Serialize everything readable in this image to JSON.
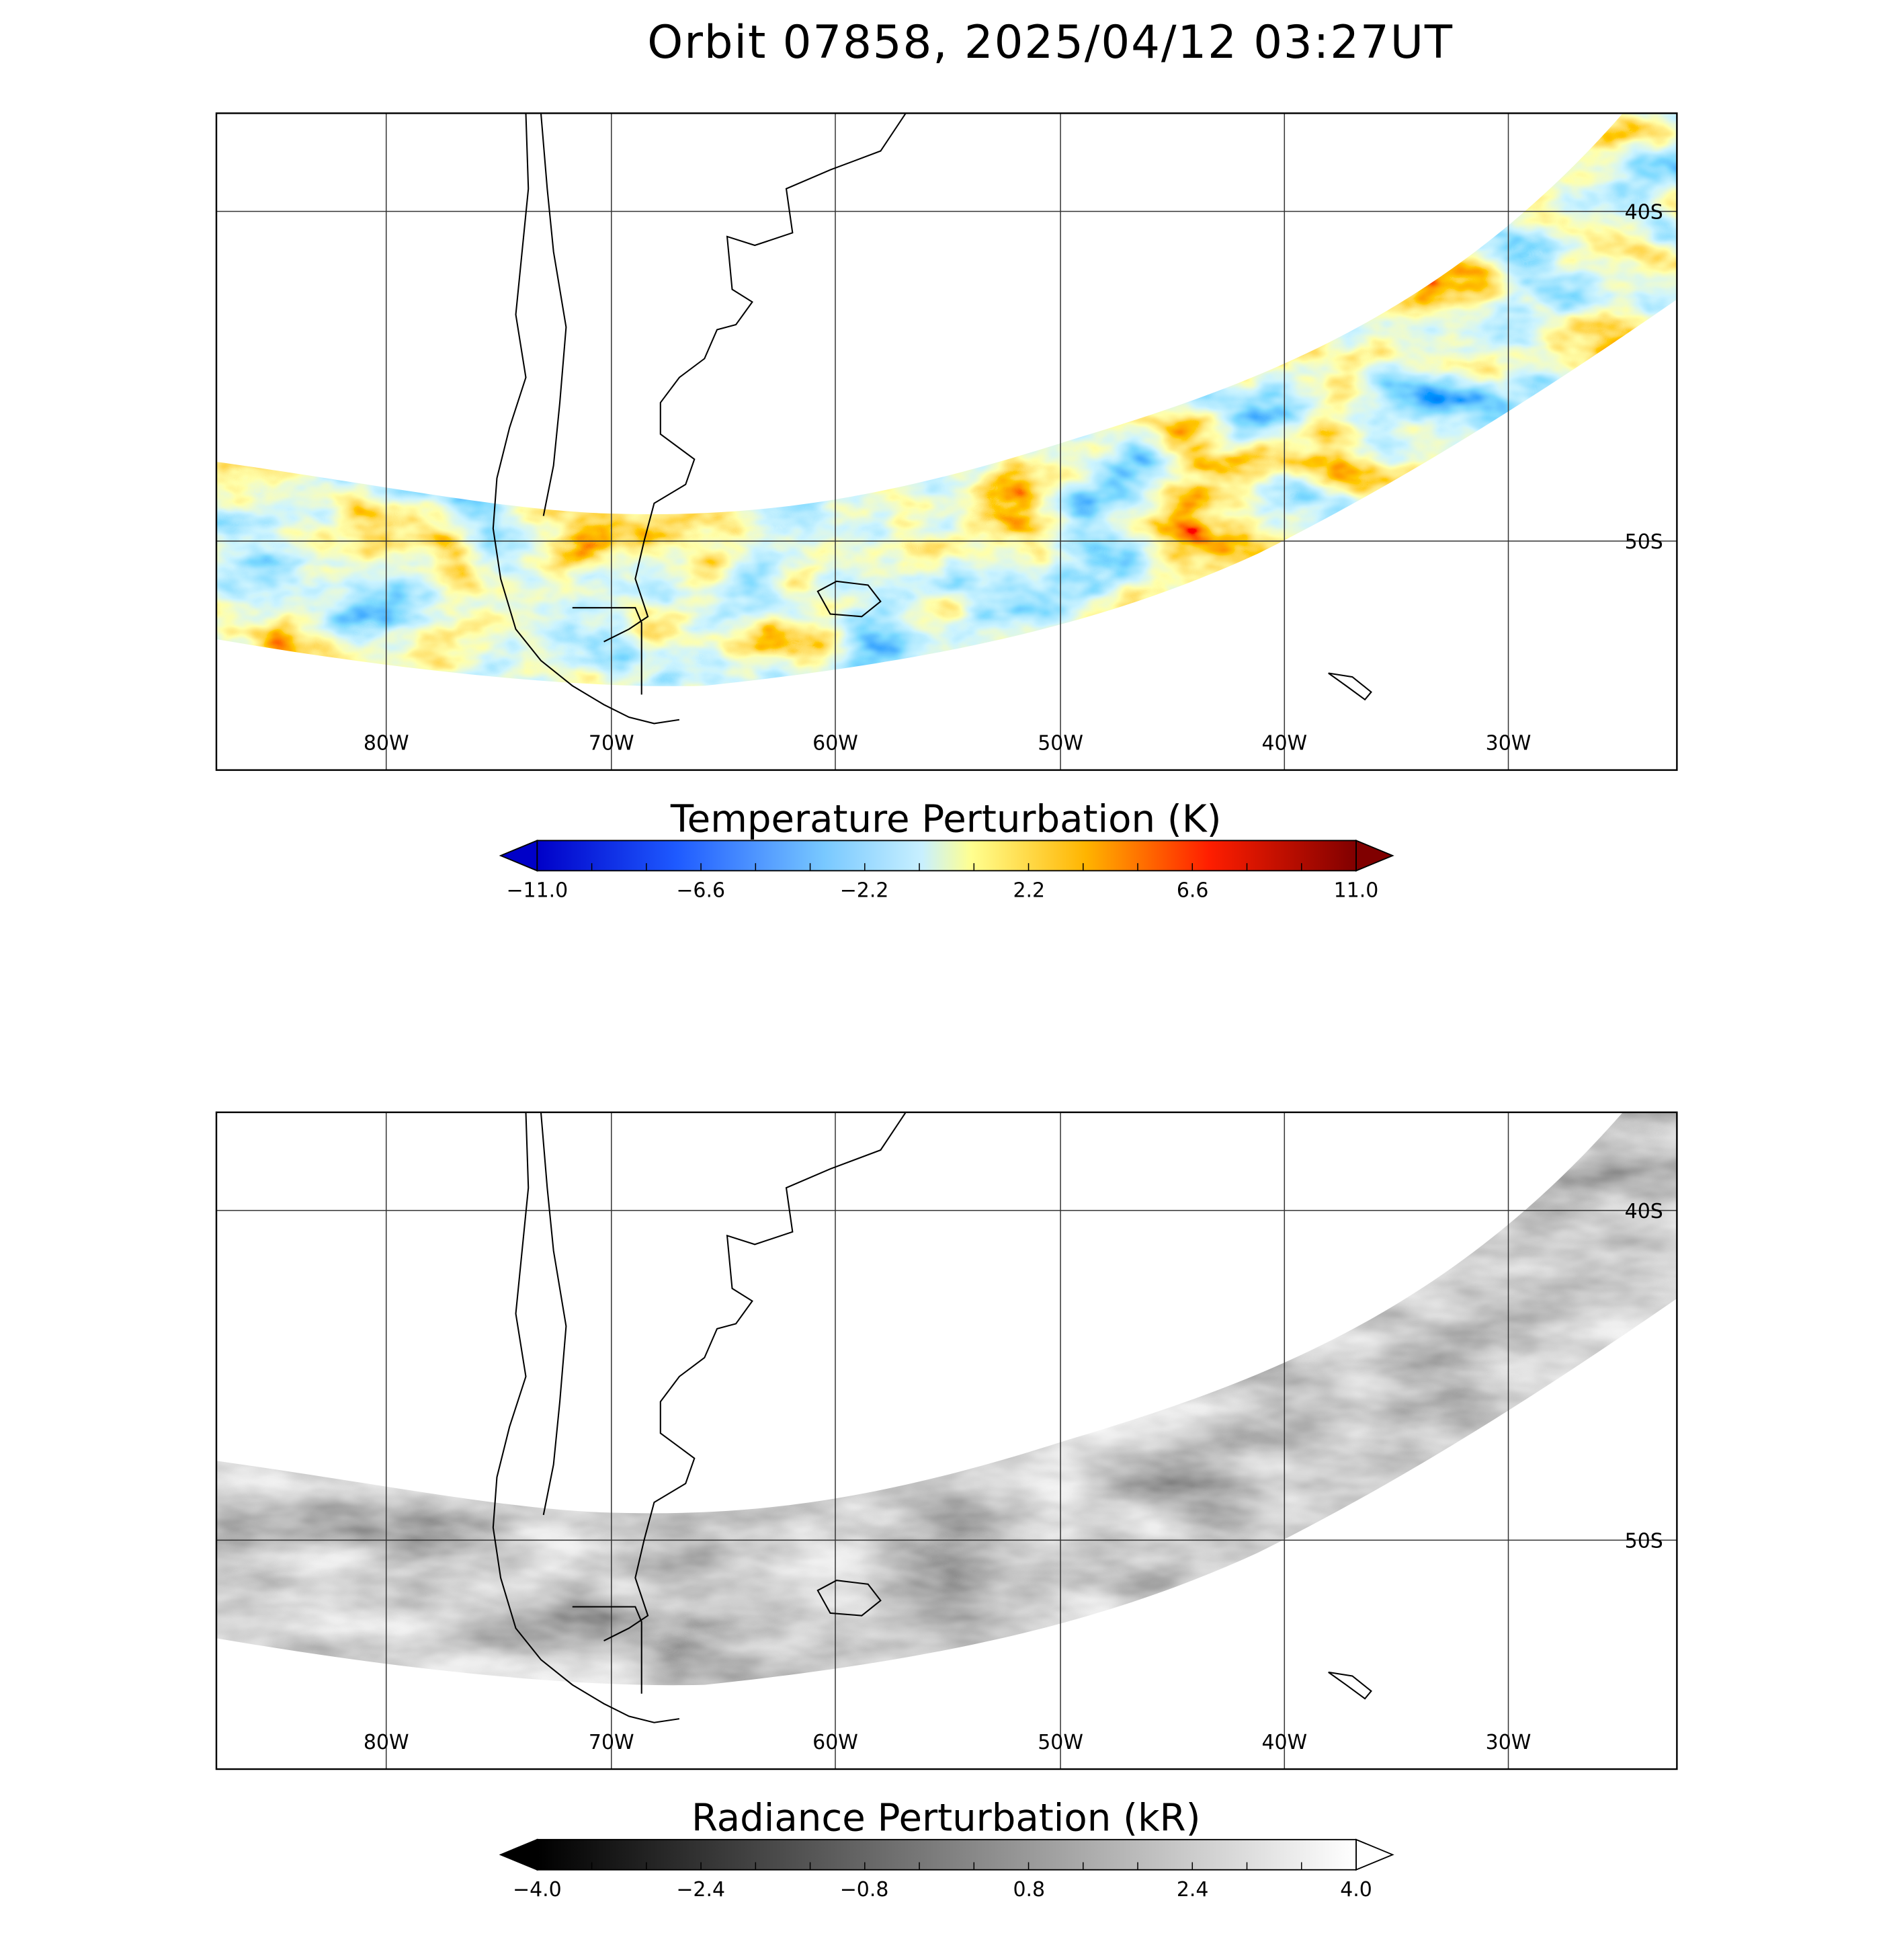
{
  "title": "Orbit 07858, 2025/04/12 03:27UT",
  "panels": [
    {
      "longitude_labels": [
        "80W",
        "70W",
        "60W",
        "50W",
        "40W",
        "30W"
      ],
      "latitude_labels": [
        "40S",
        "50S"
      ],
      "colorbar": {
        "title": "Temperature Perturbation (K)",
        "tick_labels": [
          "−11.0",
          "−6.6",
          "−2.2",
          "2.2",
          "6.6",
          "11.0"
        ]
      }
    },
    {
      "longitude_labels": [
        "80W",
        "70W",
        "60W",
        "50W",
        "40W",
        "30W"
      ],
      "latitude_labels": [
        "40S",
        "50S"
      ],
      "colorbar": {
        "title": "Radiance Perturbation (kR)",
        "tick_labels": [
          "−4.0",
          "−2.4",
          "−0.8",
          "0.8",
          "2.4",
          "4.0"
        ]
      }
    }
  ]
}
